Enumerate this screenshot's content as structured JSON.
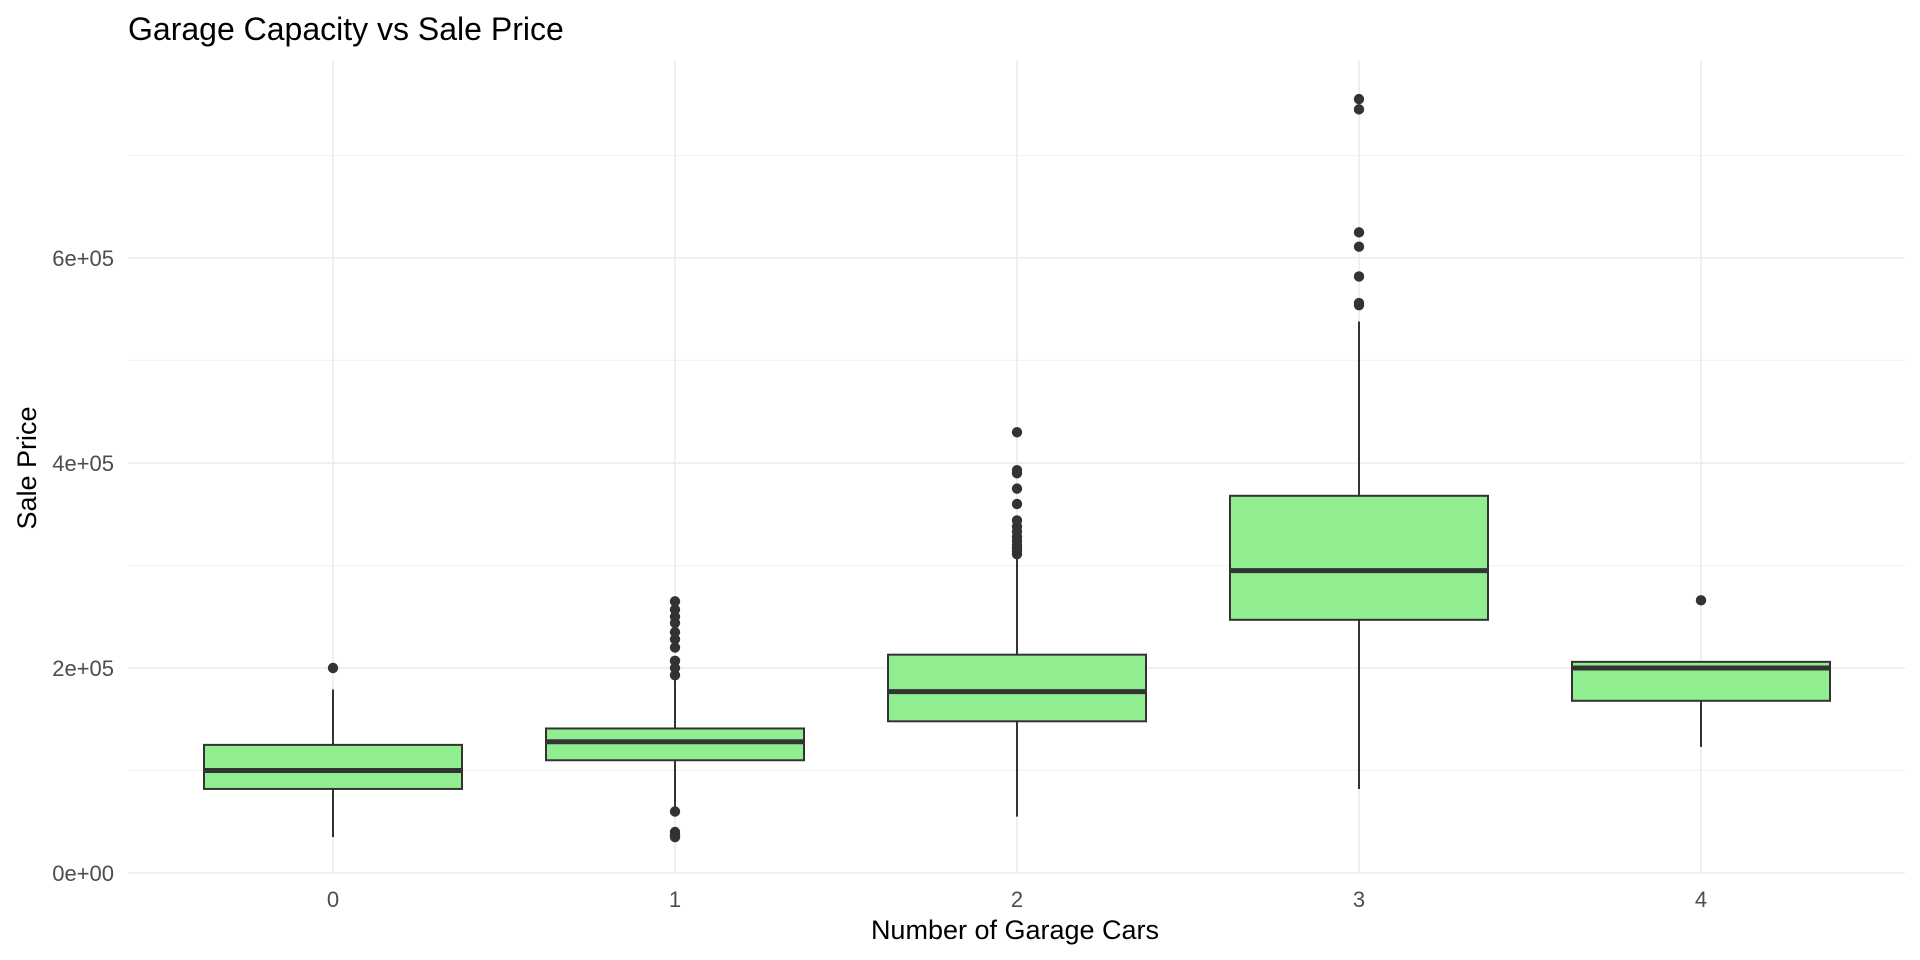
{
  "chart_data": {
    "type": "boxplot",
    "title": "Garage Capacity vs Sale Price",
    "xlabel": "Number of Garage Cars",
    "ylabel": "Sale Price",
    "categories": [
      "0",
      "1",
      "2",
      "3",
      "4"
    ],
    "ylim": [
      0,
      755000
    ],
    "y_ticks": [
      {
        "value": 0,
        "label": "0e+00"
      },
      {
        "value": 200000,
        "label": "2e+05"
      },
      {
        "value": 400000,
        "label": "4e+05"
      },
      {
        "value": 600000,
        "label": "6e+05"
      }
    ],
    "y_minor_ticks": [
      100000,
      300000,
      500000,
      700000
    ],
    "grid": true,
    "legend": "none",
    "colors": {
      "box_fill": "#90ee90",
      "box_line": "#333333"
    },
    "boxes": [
      {
        "category": "0",
        "min": 35000,
        "q1": 82000,
        "median": 100000,
        "q3": 125000,
        "max": 179000,
        "outliers": [
          200000
        ]
      },
      {
        "category": "1",
        "min": 60000,
        "q1": 110000,
        "median": 128000,
        "q3": 141000,
        "max": 190000,
        "outliers": [
          193000,
          200000,
          207000,
          220000,
          228000,
          235000,
          244000,
          250000,
          257000,
          265000,
          60000,
          40000,
          37000,
          35000
        ]
      },
      {
        "category": "2",
        "min": 55000,
        "q1": 148000,
        "median": 177000,
        "q3": 213000,
        "max": 308000,
        "outliers": [
          311000,
          314000,
          317000,
          320000,
          324000,
          328000,
          333000,
          338000,
          344000,
          360000,
          375000,
          390000,
          393000,
          430000
        ]
      },
      {
        "category": "3",
        "min": 82000,
        "q1": 247000,
        "median": 295000,
        "q3": 368000,
        "max": 538000,
        "outliers": [
          554000,
          556000,
          582000,
          611000,
          625000,
          745000,
          755000
        ]
      },
      {
        "category": "4",
        "min": 123000,
        "q1": 168000,
        "median": 200000,
        "q3": 206000,
        "max": 206000,
        "outliers": [
          266000
        ]
      }
    ]
  }
}
